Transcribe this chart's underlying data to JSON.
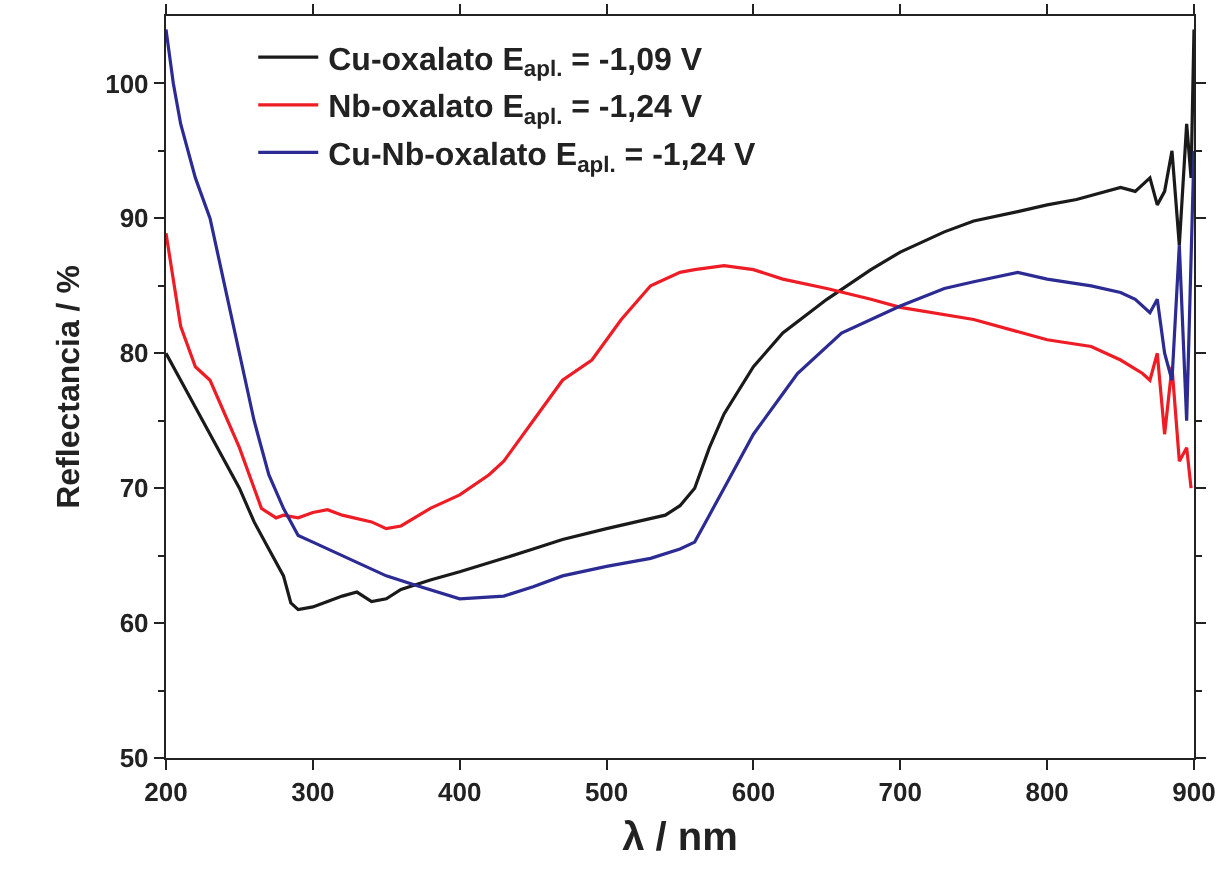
{
  "chart_data": {
    "type": "line",
    "xlabel": "λ / nm",
    "ylabel": "Reflectancia / %",
    "xlim": [
      200,
      900
    ],
    "ylim": [
      50,
      105
    ],
    "xticks": [
      200,
      300,
      400,
      500,
      600,
      700,
      800,
      900
    ],
    "yticks": [
      50,
      60,
      70,
      80,
      90,
      100
    ],
    "grid": false,
    "legend": "top left",
    "marker": "none",
    "line_style": "solid",
    "series": [
      {
        "name": "Cu-oxalato E$_{apl.}$ = -1,09 V",
        "color": "#1a1a1a",
        "x": [
          200,
          210,
          220,
          235,
          250,
          260,
          270,
          280,
          285,
          290,
          300,
          310,
          320,
          330,
          340,
          350,
          360,
          380,
          400,
          430,
          450,
          470,
          500,
          520,
          540,
          550,
          560,
          570,
          580,
          600,
          620,
          650,
          680,
          700,
          730,
          750,
          780,
          800,
          820,
          850,
          860,
          870,
          875,
          880,
          885,
          890,
          895,
          898,
          900
        ],
        "values": [
          80,
          78,
          76,
          73,
          70,
          67.5,
          65.5,
          63.5,
          61.5,
          61,
          61.2,
          61.6,
          62,
          62.3,
          61.6,
          61.8,
          62.5,
          63.2,
          63.8,
          64.8,
          65.5,
          66.2,
          67,
          67.5,
          68,
          68.7,
          70,
          73,
          75.5,
          79,
          81.5,
          84,
          86.2,
          87.5,
          89,
          89.8,
          90.5,
          91,
          91.4,
          92.3,
          92,
          93,
          91,
          92,
          95,
          88,
          97,
          93,
          104
        ]
      },
      {
        "name": "Nb-oxalato E$_{apl.}$ = -1,24 V",
        "color": "#ee1c25",
        "x": [
          200,
          210,
          220,
          230,
          250,
          265,
          275,
          280,
          290,
          300,
          310,
          320,
          340,
          350,
          360,
          380,
          400,
          420,
          430,
          450,
          470,
          490,
          510,
          530,
          550,
          560,
          580,
          600,
          620,
          650,
          680,
          700,
          750,
          800,
          830,
          850,
          865,
          870,
          875,
          880,
          885,
          890,
          895,
          898
        ],
        "values": [
          88.9,
          82,
          79,
          78,
          73,
          68.5,
          67.8,
          68,
          67.8,
          68.2,
          68.4,
          68,
          67.5,
          67,
          67.2,
          68.5,
          69.5,
          71,
          72,
          75,
          78,
          79.5,
          82.5,
          85,
          86,
          86.2,
          86.5,
          86.2,
          85.5,
          84.8,
          84,
          83.4,
          82.5,
          81,
          80.5,
          79.5,
          78.5,
          78,
          80,
          74,
          79,
          72,
          73,
          70
        ]
      },
      {
        "name": "Cu-Nb-oxalato E$_{apl.}$ = -1,24 V",
        "color": "#2b2b93",
        "x": [
          200,
          205,
          210,
          220,
          230,
          240,
          250,
          260,
          270,
          280,
          290,
          300,
          310,
          330,
          350,
          370,
          400,
          430,
          450,
          470,
          500,
          530,
          550,
          560,
          570,
          580,
          600,
          620,
          630,
          660,
          700,
          730,
          750,
          780,
          800,
          830,
          850,
          860,
          870,
          875,
          880,
          885,
          890,
          895,
          900
        ],
        "values": [
          104,
          100,
          97,
          93,
          90,
          85,
          80,
          75,
          71,
          68.5,
          66.5,
          66,
          65.5,
          64.5,
          63.5,
          62.8,
          61.8,
          62,
          62.7,
          63.5,
          64.2,
          64.8,
          65.5,
          66,
          68,
          70,
          74,
          77,
          78.5,
          81.5,
          83.5,
          84.8,
          85.3,
          86,
          85.5,
          85,
          84.5,
          84,
          83,
          84,
          80,
          78,
          88,
          75,
          95
        ]
      }
    ]
  }
}
